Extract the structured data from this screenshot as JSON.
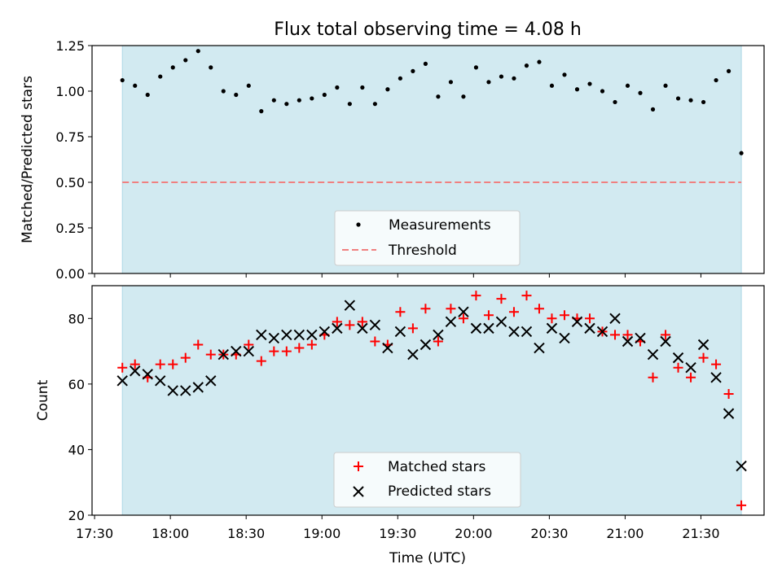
{
  "title": "Flux total observing time = 4.08 h",
  "colors": {
    "shade": "#add8e6",
    "measurement": "#000000",
    "threshold": "#f08080",
    "matched": "#ff0000",
    "predicted": "#000000"
  },
  "chart_data": [
    {
      "type": "scatter",
      "ylabel": "Matched/Predicted stars",
      "ylim": [
        0,
        1.25
      ],
      "yticks": [
        0,
        0.25,
        0.5,
        0.75,
        1.0,
        1.25
      ],
      "ytick_labels": [
        "0.00",
        "0.25",
        "0.50",
        "0.75",
        "1.00",
        "1.25"
      ],
      "xlim": [
        -12,
        254
      ],
      "shaded_region": [
        0,
        245
      ],
      "threshold": 0.5,
      "legend": {
        "placement": "lower-center",
        "entries": [
          "Measurements",
          "Threshold"
        ]
      },
      "x": [
        0,
        5,
        10,
        15,
        20,
        25,
        30,
        35,
        40,
        45,
        50,
        55,
        60,
        65,
        70,
        75,
        80,
        85,
        90,
        95,
        100,
        105,
        110,
        115,
        120,
        125,
        130,
        135,
        140,
        145,
        150,
        155,
        160,
        165,
        170,
        175,
        180,
        185,
        190,
        195,
        200,
        205,
        210,
        215,
        220,
        225,
        230,
        235,
        240,
        245
      ],
      "series": [
        {
          "name": "Measurements",
          "values": [
            1.06,
            1.03,
            0.98,
            1.08,
            1.13,
            1.17,
            1.22,
            1.13,
            1.0,
            0.98,
            1.03,
            0.89,
            0.95,
            0.93,
            0.95,
            0.96,
            0.98,
            1.02,
            0.93,
            1.02,
            0.93,
            1.01,
            1.07,
            1.11,
            1.15,
            0.97,
            1.05,
            0.97,
            1.13,
            1.05,
            1.08,
            1.07,
            1.14,
            1.16,
            1.03,
            1.09,
            1.01,
            1.04,
            1.0,
            0.94,
            1.03,
            0.99,
            0.9,
            1.03,
            0.96,
            0.95,
            0.94,
            1.06,
            1.11,
            0.66
          ]
        }
      ]
    },
    {
      "type": "scatter",
      "xlabel": "Time (UTC)",
      "ylabel": "Count",
      "ylim": [
        20,
        90
      ],
      "yticks": [
        20,
        40,
        60,
        80
      ],
      "ytick_labels": [
        "20",
        "40",
        "60",
        "80"
      ],
      "xlim": [
        -12,
        254
      ],
      "xticks": [
        -11,
        19,
        49,
        79,
        109,
        139,
        169,
        199,
        229
      ],
      "xtick_labels": [
        "17:30",
        "18:00",
        "18:30",
        "19:00",
        "19:30",
        "20:00",
        "20:30",
        "21:00",
        "21:30"
      ],
      "shaded_region": [
        0,
        245
      ],
      "legend": {
        "placement": "lower-center",
        "entries": [
          "Matched stars",
          "Predicted stars"
        ]
      },
      "x": [
        0,
        5,
        10,
        15,
        20,
        25,
        30,
        35,
        40,
        45,
        50,
        55,
        60,
        65,
        70,
        75,
        80,
        85,
        90,
        95,
        100,
        105,
        110,
        115,
        120,
        125,
        130,
        135,
        140,
        145,
        150,
        155,
        160,
        165,
        170,
        175,
        180,
        185,
        190,
        195,
        200,
        205,
        210,
        215,
        220,
        225,
        230,
        235,
        240,
        245
      ],
      "series": [
        {
          "name": "Matched stars",
          "marker": "plus",
          "values": [
            65,
            66,
            62,
            66,
            66,
            68,
            72,
            69,
            69,
            69,
            72,
            67,
            70,
            70,
            71,
            72,
            75,
            79,
            78,
            79,
            73,
            72,
            82,
            77,
            83,
            73,
            83,
            80,
            87,
            81,
            86,
            82,
            87,
            83,
            80,
            81,
            80,
            80,
            76,
            75,
            75,
            73,
            62,
            75,
            65,
            62,
            68,
            66,
            57,
            23
          ]
        },
        {
          "name": "Predicted stars",
          "marker": "x",
          "values": [
            61,
            64,
            63,
            61,
            58,
            58,
            59,
            61,
            69,
            70,
            70,
            75,
            74,
            75,
            75,
            75,
            76,
            77,
            84,
            77,
            78,
            71,
            76,
            69,
            72,
            75,
            79,
            82,
            77,
            77,
            79,
            76,
            76,
            71,
            77,
            74,
            79,
            77,
            76,
            80,
            73,
            74,
            69,
            73,
            68,
            65,
            72,
            62,
            51,
            35
          ]
        }
      ]
    }
  ]
}
